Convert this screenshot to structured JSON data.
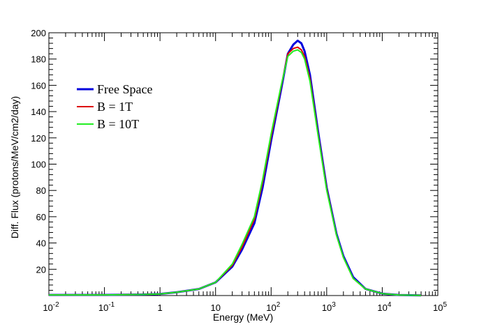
{
  "chart_data": {
    "type": "line",
    "xlabel": "Energy (MeV)",
    "ylabel": "Diff. Flux (protons/MeV/cm2/day)",
    "x_scale": "log",
    "xlim": [
      0.01,
      100000
    ],
    "ylim": [
      0,
      200
    ],
    "y_ticks": [
      20,
      40,
      60,
      80,
      100,
      120,
      140,
      160,
      180,
      200
    ],
    "x_ticks": [
      {
        "base": "10",
        "exp": "-2",
        "value": 0.01
      },
      {
        "base": "10",
        "exp": "-1",
        "value": 0.1
      },
      {
        "base": "1",
        "exp": "",
        "value": 1
      },
      {
        "base": "10",
        "exp": "",
        "value": 10
      },
      {
        "base": "10",
        "exp": "2",
        "value": 100
      },
      {
        "base": "10",
        "exp": "3",
        "value": 1000
      },
      {
        "base": "10",
        "exp": "4",
        "value": 10000
      },
      {
        "base": "10",
        "exp": "5",
        "value": 100000
      }
    ],
    "grid": false,
    "legend_position": "upper-left",
    "x": [
      0.01,
      0.1,
      0.5,
      1,
      2,
      5,
      10,
      20,
      30,
      50,
      70,
      100,
      150,
      200,
      250,
      300,
      350,
      400,
      500,
      700,
      1000,
      1500,
      2000,
      3000,
      5000,
      10000,
      20000,
      50000
    ],
    "series": [
      {
        "name": "Free Space",
        "color": "#0000dd",
        "width": 3,
        "values": [
          0.5,
          0.5,
          0.8,
          1.2,
          2.5,
          5,
          10,
          22,
          35,
          55,
          82,
          118,
          156,
          184,
          191,
          194,
          192,
          186,
          168,
          125,
          82,
          47,
          30,
          14,
          5,
          1.5,
          0.4,
          0.1
        ]
      },
      {
        "name": "B = 1T",
        "color": "#dd0000",
        "width": 2,
        "values": [
          0.5,
          0.5,
          0.8,
          1.2,
          2.5,
          5,
          10,
          23,
          37,
          58,
          86,
          121,
          158,
          184,
          188,
          189,
          187,
          182,
          165,
          123,
          81,
          46,
          29,
          13,
          5,
          1.5,
          0.4,
          0.1
        ]
      },
      {
        "name": "B = 10T",
        "color": "#22ee22",
        "width": 2,
        "values": [
          0.5,
          0.5,
          0.8,
          1.2,
          2.5,
          5,
          10,
          24,
          39,
          60,
          88,
          123,
          159,
          182,
          186,
          187,
          185,
          180,
          163,
          122,
          80,
          46,
          29,
          13,
          5,
          1.5,
          0.4,
          0.1
        ]
      }
    ]
  }
}
